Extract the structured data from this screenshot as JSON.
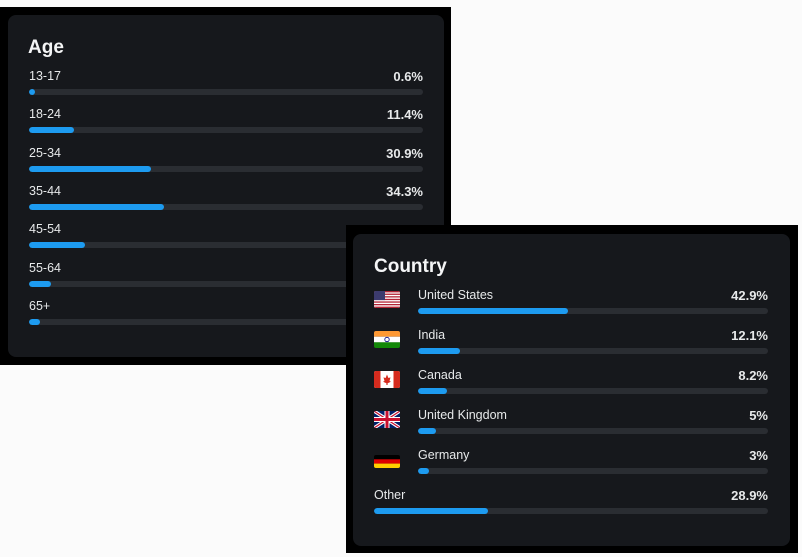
{
  "age": {
    "title": "Age",
    "items": [
      {
        "label": "13-17",
        "percent_text": "0.6%",
        "value": 0.6
      },
      {
        "label": "18-24",
        "percent_text": "11.4%",
        "value": 11.4
      },
      {
        "label": "25-34",
        "percent_text": "30.9%",
        "value": 30.9
      },
      {
        "label": "35-44",
        "percent_text": "34.3%",
        "value": 34.3
      },
      {
        "label": "45-54",
        "percent_text": "",
        "value": 14.2
      },
      {
        "label": "55-64",
        "percent_text": "",
        "value": 5.5
      },
      {
        "label": "65+",
        "percent_text": "",
        "value": 2.8
      }
    ]
  },
  "country": {
    "title": "Country",
    "items": [
      {
        "label": "United States",
        "percent_text": "42.9%",
        "value": 42.9,
        "flag": "us-flag-icon"
      },
      {
        "label": "India",
        "percent_text": "12.1%",
        "value": 12.1,
        "flag": "india-flag-icon"
      },
      {
        "label": "Canada",
        "percent_text": "8.2%",
        "value": 8.2,
        "flag": "canada-flag-icon"
      },
      {
        "label": "United Kingdom",
        "percent_text": "5%",
        "value": 5,
        "flag": "uk-flag-icon"
      },
      {
        "label": "Germany",
        "percent_text": "3%",
        "value": 3,
        "flag": "germany-flag-icon"
      },
      {
        "label": "Other",
        "percent_text": "28.9%",
        "value": 28.9,
        "flag": ""
      }
    ]
  },
  "colors": {
    "accent": "#1d9bf0",
    "panel": "#16181c",
    "track": "#2a2d32"
  }
}
